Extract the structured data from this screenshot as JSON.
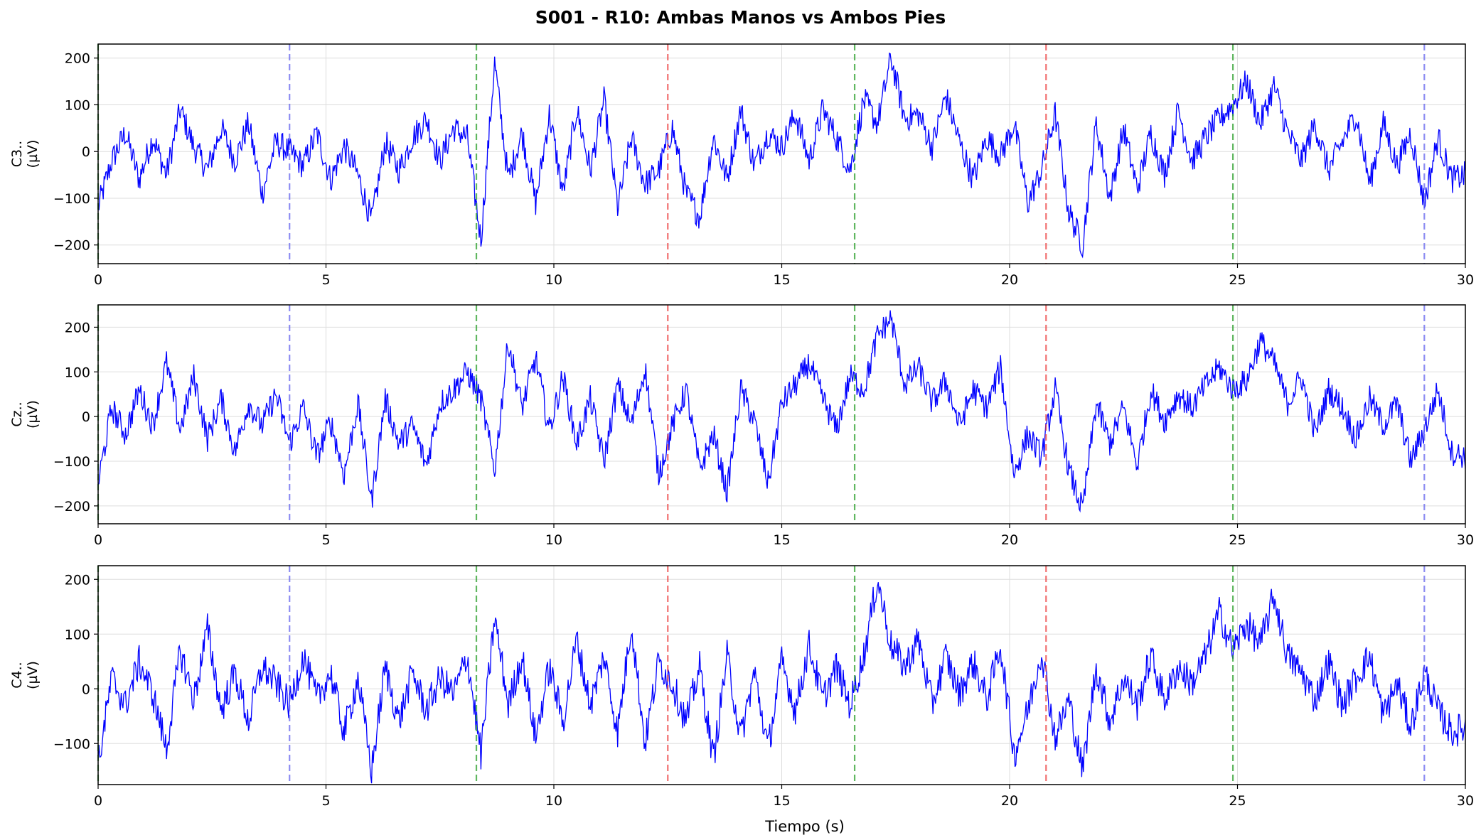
{
  "chart_data": {
    "type": "line",
    "title": "S001 - R10: Ambas Manos vs Ambos Pies",
    "xlabel": "Tiempo (s)",
    "xlim": [
      0,
      30
    ],
    "xticks": [
      0,
      5,
      10,
      15,
      20,
      25,
      30
    ],
    "grid": true,
    "line_color": "#0000ff",
    "event_markers": [
      {
        "t": 0.0,
        "color": "#2ca02c"
      },
      {
        "t": 4.2,
        "color": "#6666ee"
      },
      {
        "t": 8.3,
        "color": "#2ca02c"
      },
      {
        "t": 12.5,
        "color": "#ee4444"
      },
      {
        "t": 16.6,
        "color": "#2ca02c"
      },
      {
        "t": 20.8,
        "color": "#ee4444"
      },
      {
        "t": 24.9,
        "color": "#2ca02c"
      },
      {
        "t": 29.1,
        "color": "#6666ee"
      }
    ],
    "panels": [
      {
        "channel": "C3..",
        "unit": "(µV)",
        "ylim": [
          -240,
          230
        ],
        "yticks": [
          -200,
          -100,
          0,
          100,
          200
        ],
        "t": [
          0.0,
          0.3,
          0.6,
          0.9,
          1.2,
          1.5,
          1.8,
          2.1,
          2.4,
          2.7,
          3.0,
          3.3,
          3.6,
          3.9,
          4.2,
          4.5,
          4.8,
          5.1,
          5.4,
          5.7,
          6.0,
          6.3,
          6.6,
          6.9,
          7.2,
          7.5,
          7.8,
          8.1,
          8.4,
          8.7,
          9.0,
          9.3,
          9.6,
          9.9,
          10.2,
          10.5,
          10.8,
          11.1,
          11.4,
          11.7,
          12.0,
          12.3,
          12.6,
          12.9,
          13.2,
          13.5,
          13.8,
          14.1,
          14.4,
          14.7,
          15.0,
          15.3,
          15.6,
          15.9,
          16.2,
          16.5,
          16.8,
          17.1,
          17.4,
          17.7,
          18.0,
          18.3,
          18.6,
          18.9,
          19.2,
          19.5,
          19.8,
          20.1,
          20.4,
          20.7,
          21.0,
          21.3,
          21.6,
          21.9,
          22.2,
          22.5,
          22.8,
          23.1,
          23.4,
          23.7,
          24.0,
          24.3,
          24.6,
          24.9,
          25.2,
          25.5,
          25.8,
          26.1,
          26.4,
          26.7,
          27.0,
          27.3,
          27.6,
          27.9,
          28.2,
          28.5,
          28.8,
          29.1,
          29.4,
          29.7,
          30.0
        ],
        "values": [
          -120,
          -20,
          40,
          -60,
          30,
          -50,
          90,
          10,
          -40,
          50,
          -20,
          60,
          -90,
          20,
          0,
          -30,
          40,
          -60,
          10,
          -50,
          -150,
          20,
          -40,
          30,
          70,
          -20,
          50,
          30,
          -190,
          190,
          -60,
          40,
          -110,
          80,
          -90,
          90,
          -40,
          110,
          -120,
          30,
          -70,
          -40,
          50,
          -90,
          -140,
          30,
          -60,
          90,
          -30,
          40,
          10,
          80,
          -20,
          90,
          30,
          -40,
          110,
          60,
          200,
          70,
          80,
          10,
          120,
          20,
          -60,
          30,
          -10,
          60,
          -110,
          -40,
          80,
          -130,
          -200,
          60,
          -100,
          50,
          -80,
          40,
          -50,
          90,
          -20,
          30,
          70,
          100,
          150,
          60,
          140,
          40,
          -20,
          60,
          -40,
          20,
          80,
          -70,
          60,
          -30,
          40,
          -110,
          30,
          -60,
          -50
        ],
        "x_tick_labels": [
          "0",
          "5",
          "10",
          "15",
          "20",
          "25",
          "30"
        ]
      },
      {
        "channel": "Cz..",
        "unit": "(µV)",
        "ylim": [
          -240,
          250
        ],
        "yticks": [
          -200,
          -100,
          0,
          100,
          200
        ],
        "t": [
          0.0,
          0.3,
          0.6,
          0.9,
          1.2,
          1.5,
          1.8,
          2.1,
          2.4,
          2.7,
          3.0,
          3.3,
          3.6,
          3.9,
          4.2,
          4.5,
          4.8,
          5.1,
          5.4,
          5.7,
          6.0,
          6.3,
          6.6,
          6.9,
          7.2,
          7.5,
          7.8,
          8.1,
          8.4,
          8.7,
          9.0,
          9.3,
          9.6,
          9.9,
          10.2,
          10.5,
          10.8,
          11.1,
          11.4,
          11.7,
          12.0,
          12.3,
          12.6,
          12.9,
          13.2,
          13.5,
          13.8,
          14.1,
          14.4,
          14.7,
          15.0,
          15.3,
          15.6,
          15.9,
          16.2,
          16.5,
          16.8,
          17.1,
          17.4,
          17.7,
          18.0,
          18.3,
          18.6,
          18.9,
          19.2,
          19.5,
          19.8,
          20.1,
          20.4,
          20.7,
          21.0,
          21.3,
          21.6,
          21.9,
          22.2,
          22.5,
          22.8,
          23.1,
          23.4,
          23.7,
          24.0,
          24.3,
          24.6,
          24.9,
          25.2,
          25.5,
          25.8,
          26.1,
          26.4,
          26.7,
          27.0,
          27.3,
          27.6,
          27.9,
          28.2,
          28.5,
          28.8,
          29.1,
          29.4,
          29.7,
          30.0
        ],
        "values": [
          -150,
          20,
          -40,
          60,
          -20,
          120,
          -30,
          90,
          -50,
          40,
          -80,
          30,
          -20,
          50,
          -60,
          20,
          -90,
          -10,
          -130,
          30,
          -190,
          40,
          -60,
          -20,
          -110,
          30,
          60,
          100,
          40,
          -120,
          170,
          20,
          130,
          -30,
          90,
          -60,
          40,
          -100,
          70,
          -20,
          110,
          -130,
          -20,
          60,
          -120,
          -40,
          -170,
          60,
          -10,
          -150,
          30,
          70,
          120,
          40,
          -30,
          90,
          60,
          180,
          220,
          70,
          110,
          30,
          80,
          -20,
          60,
          20,
          110,
          -130,
          -40,
          -90,
          60,
          -120,
          -210,
          30,
          -60,
          20,
          -110,
          60,
          -10,
          50,
          20,
          70,
          110,
          60,
          80,
          170,
          120,
          30,
          90,
          -40,
          60,
          20,
          -50,
          40,
          -20,
          30,
          -100,
          -30,
          60,
          -80,
          -90
        ],
        "x_tick_labels": [
          "0",
          "5",
          "10",
          "15",
          "20",
          "25",
          "30"
        ]
      },
      {
        "channel": "C4..",
        "unit": "(µV)",
        "ylim": [
          -175,
          225
        ],
        "yticks": [
          -100,
          0,
          100,
          200
        ],
        "t": [
          0.0,
          0.3,
          0.6,
          0.9,
          1.2,
          1.5,
          1.8,
          2.1,
          2.4,
          2.7,
          3.0,
          3.3,
          3.6,
          3.9,
          4.2,
          4.5,
          4.8,
          5.1,
          5.4,
          5.7,
          6.0,
          6.3,
          6.6,
          6.9,
          7.2,
          7.5,
          7.8,
          8.1,
          8.4,
          8.7,
          9.0,
          9.3,
          9.6,
          9.9,
          10.2,
          10.5,
          10.8,
          11.1,
          11.4,
          11.7,
          12.0,
          12.3,
          12.6,
          12.9,
          13.2,
          13.5,
          13.8,
          14.1,
          14.4,
          14.7,
          15.0,
          15.3,
          15.6,
          15.9,
          16.2,
          16.5,
          16.8,
          17.1,
          17.4,
          17.7,
          18.0,
          18.3,
          18.6,
          18.9,
          19.2,
          19.5,
          19.8,
          20.1,
          20.4,
          20.7,
          21.0,
          21.3,
          21.6,
          21.9,
          22.2,
          22.5,
          22.8,
          23.1,
          23.4,
          23.7,
          24.0,
          24.3,
          24.6,
          24.9,
          25.2,
          25.5,
          25.8,
          26.1,
          26.4,
          26.7,
          27.0,
          27.3,
          27.6,
          27.9,
          28.2,
          28.5,
          28.8,
          29.1,
          29.4,
          29.7,
          30.0
        ],
        "values": [
          -140,
          20,
          -30,
          50,
          -10,
          -110,
          70,
          -20,
          110,
          -40,
          30,
          -60,
          40,
          10,
          -30,
          60,
          -20,
          30,
          -80,
          20,
          -150,
          40,
          -60,
          30,
          -40,
          20,
          -10,
          60,
          -120,
          130,
          -30,
          60,
          -90,
          40,
          -60,
          90,
          -30,
          60,
          -80,
          120,
          -100,
          50,
          10,
          -60,
          40,
          -130,
          60,
          -90,
          30,
          -110,
          50,
          -40,
          80,
          -20,
          40,
          -30,
          60,
          200,
          80,
          40,
          90,
          -30,
          60,
          -10,
          50,
          -20,
          80,
          -120,
          -40,
          70,
          -90,
          -20,
          -150,
          40,
          -60,
          20,
          -30,
          60,
          -20,
          40,
          10,
          60,
          140,
          70,
          120,
          80,
          170,
          60,
          30,
          -20,
          50,
          -30,
          20,
          60,
          -50,
          10,
          -70,
          30,
          -40,
          -80,
          -70
        ],
        "x_tick_labels": [
          "0",
          "5",
          "10",
          "15",
          "20",
          "25",
          "30"
        ]
      }
    ]
  }
}
